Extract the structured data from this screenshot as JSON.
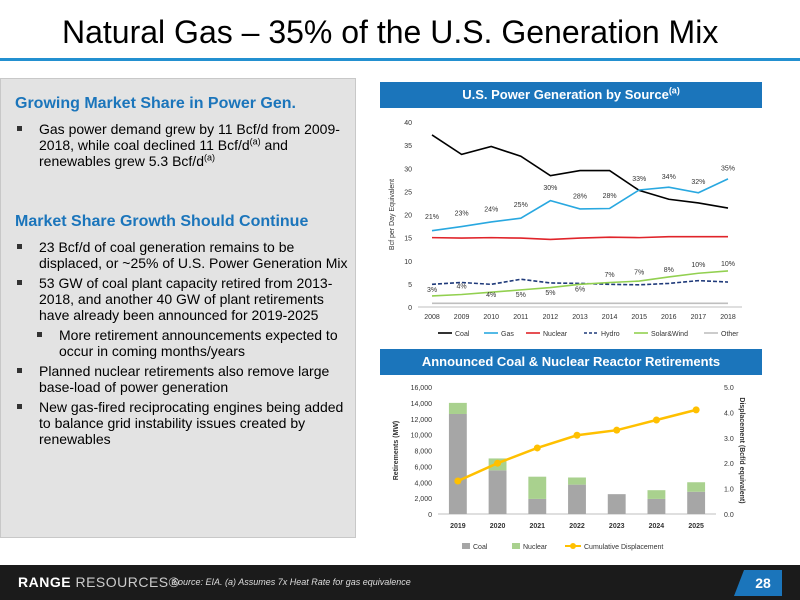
{
  "slide": {
    "title": "Natural Gas – 35% of the U.S. Generation Mix",
    "page_number": "28"
  },
  "left": {
    "section1_heading": "Growing Market Share in Power Gen.",
    "section1_bullets": [
      {
        "text": "Gas power demand grew by 11 Bcf/d from 2009-2018, while coal declined 11 Bcf/d",
        "sup1": "(a)",
        "text2": " and renewables grew 5.3 Bcf/d",
        "sup2": "(a)"
      }
    ],
    "section2_heading": "Market Share Growth Should Continue",
    "section2_bullets": [
      "23 Bcf/d of coal generation remains to be displaced, or ~25% of U.S. Power Generation Mix",
      "53 GW of coal plant capacity retired from 2013-2018, and another 40 GW of plant retirements have already been announced for 2019-2025",
      "More retirement announcements expected to occur in coming months/years",
      "Planned nuclear retirements also remove large base-load of power generation",
      "New gas-fired reciprocating engines being added to balance grid instability issues created by renewables"
    ]
  },
  "footer": {
    "logo_bold": "RANGE",
    "logo_light": "RESOURCES",
    "logo_mark": "®",
    "source": "Source: EIA. (a) Assumes 7x Heat Rate for gas equivalence"
  },
  "colors": {
    "accent": "#1b75bb",
    "coal": "#000000",
    "gas": "#29a8e0",
    "nuclear": "#e0242a",
    "hydro": "#1f3a7a",
    "solar_wind": "#92d050",
    "other": "#bfbfbf",
    "coal_bar": "#a6a6a6",
    "nuclear_bar": "#a9d18e",
    "displacement": "#ffc000"
  },
  "chart_data": [
    {
      "type": "line",
      "title": "U.S. Power Generation by Source",
      "title_sup": "(a)",
      "ylabel": "Bcf per Day Equivalent",
      "ylim": [
        0,
        40
      ],
      "yticks": [
        "0",
        "5",
        "10",
        "15",
        "20",
        "25",
        "30",
        "35",
        "40"
      ],
      "x": [
        "2008",
        "2009",
        "2010",
        "2011",
        "2012",
        "2013",
        "2014",
        "2015",
        "2016",
        "2017",
        "2018"
      ],
      "legend_position": "bottom",
      "series": [
        {
          "name": "Coal",
          "values": [
            37.2,
            33.0,
            34.7,
            32.6,
            28.4,
            29.5,
            29.5,
            25.2,
            23.3,
            22.5,
            21.4
          ]
        },
        {
          "name": "Gas",
          "values": [
            16.5,
            17.4,
            18.4,
            19.2,
            23.0,
            21.2,
            21.3,
            25.3,
            25.9,
            24.7,
            27.7
          ]
        },
        {
          "name": "Nuclear",
          "values": [
            15.0,
            14.9,
            15.0,
            14.9,
            14.6,
            14.9,
            15.1,
            15.0,
            15.2,
            15.2,
            15.2
          ]
        },
        {
          "name": "Hydro",
          "values": [
            4.9,
            5.3,
            4.9,
            6.0,
            5.2,
            5.1,
            4.9,
            4.8,
            5.1,
            5.7,
            5.4
          ]
        },
        {
          "name": "Solar&Wind",
          "values": [
            2.4,
            2.7,
            3.2,
            3.7,
            4.2,
            4.9,
            5.3,
            5.6,
            6.5,
            7.3,
            7.8
          ]
        },
        {
          "name": "Other",
          "values": [
            0.8,
            0.8,
            0.8,
            0.8,
            0.8,
            0.8,
            0.8,
            0.8,
            0.8,
            0.8,
            0.8
          ]
        }
      ],
      "gas_labels": [
        "21%",
        "23%",
        "24%",
        "25%",
        "30%",
        "28%",
        "28%",
        "33%",
        "34%",
        "32%",
        "35%"
      ],
      "gas_label_values": [
        19.0,
        19.8,
        20.7,
        21.6,
        25.3,
        23.5,
        23.6,
        27.2,
        27.7,
        26.6,
        29.5
      ],
      "renewables_labels": [
        "3%",
        "4%",
        "4%",
        "5%",
        "5%",
        "6%",
        "7%",
        "7%",
        "8%",
        "10%",
        "10%"
      ],
      "renewables_label_values": [
        3.2,
        4.0,
        2.2,
        2.2,
        2.6,
        3.4,
        6.5,
        7.0,
        7.6,
        8.6,
        8.9
      ],
      "legend": [
        {
          "name": "Coal",
          "style": "solid"
        },
        {
          "name": "Gas",
          "style": "solid"
        },
        {
          "name": "Nuclear",
          "style": "solid"
        },
        {
          "name": "Hydro",
          "style": "dashed"
        },
        {
          "name": "Solar&Wind",
          "style": "solid"
        },
        {
          "name": "Other",
          "style": "solid"
        }
      ]
    },
    {
      "type": "bar",
      "title": "Announced Coal & Nuclear Reactor Retirements",
      "ylabel": "Retirements (MW)",
      "ylim": [
        0,
        16000
      ],
      "yticks": [
        "0",
        "2,000",
        "4,000",
        "6,000",
        "8,000",
        "10,000",
        "12,000",
        "14,000",
        "16,000"
      ],
      "y2label": "Displacement (Bcf/d equivalent)",
      "y2lim": [
        0,
        5
      ],
      "y2ticks": [
        "0.0",
        "1.0",
        "2.0",
        "3.0",
        "4.0",
        "5.0"
      ],
      "categories": [
        "2019",
        "2020",
        "2021",
        "2022",
        "2023",
        "2024",
        "2025"
      ],
      "series": [
        {
          "name": "Coal",
          "type": "bar",
          "values": [
            12600,
            5500,
            1900,
            3700,
            2500,
            1900,
            2800
          ]
        },
        {
          "name": "Nuclear",
          "type": "bar",
          "values": [
            1400,
            1500,
            2800,
            900,
            0,
            1100,
            1200
          ]
        },
        {
          "name": "Cumulative Displacement",
          "type": "line",
          "axis": "right",
          "values": [
            1.3,
            2.0,
            2.6,
            3.1,
            3.3,
            3.7,
            4.1
          ]
        }
      ],
      "legend_position": "bottom"
    }
  ]
}
